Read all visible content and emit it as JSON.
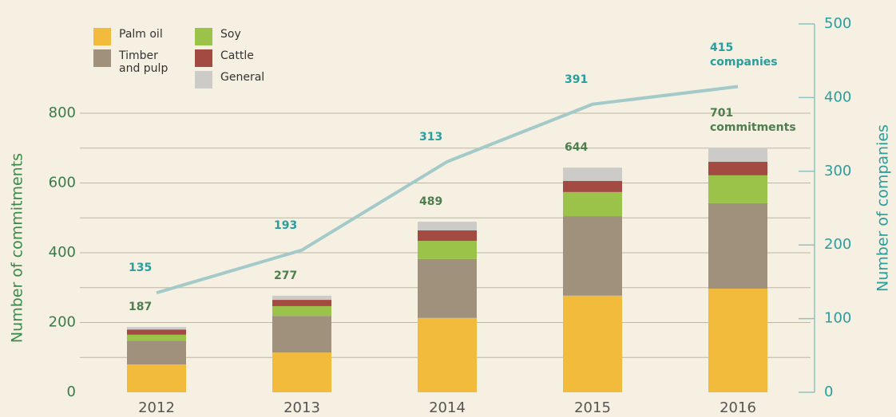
{
  "chart_data": {
    "type": "stacked_bar_line",
    "categories": [
      "2012",
      "2013",
      "2014",
      "2015",
      "2016"
    ],
    "series": [
      {
        "name": "Palm oil",
        "color": "#f2bb3c",
        "values": [
          80,
          114,
          213,
          277,
          297
        ]
      },
      {
        "name": "Timber and pulp",
        "color": "#a0917c",
        "values": [
          68,
          105,
          169,
          228,
          245
        ]
      },
      {
        "name": "Soy",
        "color": "#9bc34a",
        "values": [
          17,
          28,
          52,
          69,
          80
        ]
      },
      {
        "name": "Cattle",
        "color": "#a34b43",
        "values": [
          15,
          18,
          30,
          32,
          39
        ]
      },
      {
        "name": "General",
        "color": "#cdcbc7",
        "values": [
          7,
          12,
          25,
          38,
          40
        ]
      },
      {
        "name": "Number of companies",
        "color": "#a3c9c9",
        "axis": "y2",
        "type": "line",
        "values": [
          135,
          193,
          313,
          391,
          415
        ],
        "value_labels": [
          "135",
          "193",
          "313",
          "391",
          "415 companies"
        ]
      }
    ],
    "totals": [
      187,
      277,
      489,
      644,
      701
    ],
    "total_labels": [
      "187",
      "277",
      "489",
      "644",
      "701 commitments"
    ],
    "ylabel": "Number of commitments",
    "y2label": "Number of companies",
    "ylim": [
      0,
      1056
    ],
    "yticks": [
      0,
      200,
      400,
      600,
      800
    ],
    "yminor": [
      100,
      300,
      500,
      700
    ],
    "y2lim": [
      0,
      500
    ],
    "y2ticks": [
      0,
      100,
      200,
      300,
      400,
      500
    ],
    "grid": true,
    "legend": "top-left"
  }
}
